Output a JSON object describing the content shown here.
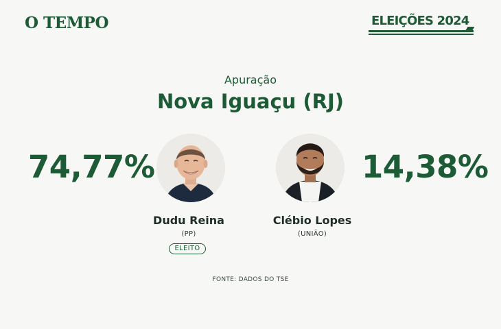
{
  "header": {
    "logo": "O TEMPO",
    "badge": "ELEIÇÕES 2024"
  },
  "title": {
    "subtitle": "Apuração",
    "city": "Nova Iguaçu (RJ)"
  },
  "candidates": [
    {
      "name": "Dudu Reina",
      "party": "(PP)",
      "percent": "74,77%",
      "status": "ELEITO",
      "photo": "candidate-photo-man-smiling"
    },
    {
      "name": "Clébio Lopes",
      "party": "(UNIÃO)",
      "percent": "14,38%",
      "photo": "candidate-photo-man-with-beard"
    }
  ],
  "footer": {
    "source": "FONTE: DADOS DO TSE"
  },
  "colors": {
    "brand_green": "#1d5a36",
    "background": "#f7f8f5"
  }
}
